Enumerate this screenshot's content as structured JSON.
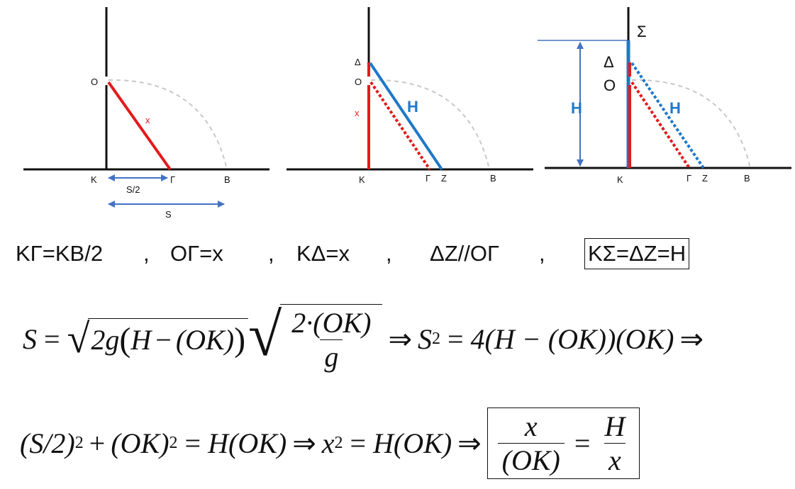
{
  "diagram1": {
    "labels": {
      "O": "Ο",
      "x": "x",
      "K": "Κ",
      "G": "Γ",
      "B": "Β",
      "half_s": "S/2",
      "s": "S"
    }
  },
  "diagram2": {
    "labels": {
      "D": "Δ",
      "O": "Ο",
      "x": "x",
      "H": "H",
      "K": "Κ",
      "G": "Γ",
      "Z": "Ζ",
      "B": "Β"
    }
  },
  "diagram3": {
    "labels": {
      "Sigma": "Σ",
      "D": "Δ",
      "O": "Ο",
      "H_left": "H",
      "H_right": "H",
      "K": "Κ",
      "G": "Γ",
      "Z": "Ζ",
      "B": "Β"
    }
  },
  "colors": {
    "red": "#e31a1c",
    "blue": "#1f78c8",
    "gray_dash": "#c8c8c8",
    "arrow_blue": "#4472c4"
  },
  "relations": {
    "r1": "ΚΓ=ΚΒ/2",
    "sep1": ",",
    "r2": "ΟΓ=x",
    "sep2": ",",
    "r3": "ΚΔ=x",
    "sep3": ",",
    "r4": "ΔΖ//ΟΓ",
    "sep4": ",",
    "r5": "ΚΣ=ΔΖ=Η"
  },
  "formula1": {
    "S": "S",
    "eq": "=",
    "two_g": "2g",
    "lp": "(",
    "H": "H",
    "minus": "−",
    "OK": "(OK)",
    "rp": ")",
    "frac_num": "2·(OK)",
    "frac_den": "g",
    "implies": "⇒",
    "S2": "S",
    "exp2": "2",
    "eq2": "=",
    "rhs": "4(H − (OK))(OK)",
    "implies2": "⇒"
  },
  "formula2": {
    "lhs1": "(S/2)",
    "exp1": "2",
    "plus": "+",
    "lhs2": "(OK)",
    "exp2": "2",
    "eq": "=",
    "rhs": "H(OK)",
    "implies": "⇒",
    "x": "x",
    "exp3": "2",
    "eq2": "=",
    "rhs2": "H(OK)",
    "implies2": "⇒",
    "box_num_left": "x",
    "box_den_left": "(OK)",
    "box_eq": "=",
    "box_num_right": "H",
    "box_den_right": "x"
  }
}
